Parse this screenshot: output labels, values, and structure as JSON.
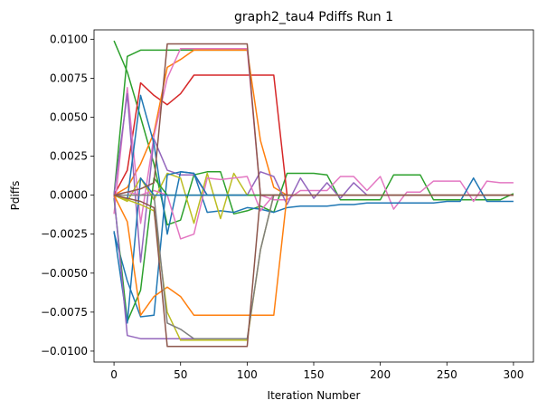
{
  "chart_data": {
    "type": "line",
    "title": "graph2_tau4 Pdiffs Run 1",
    "xlabel": "Iteration Number",
    "ylabel": "Pdiffs",
    "xlim": [
      -15,
      315
    ],
    "ylim": [
      -0.0107,
      0.0106
    ],
    "xticks": [
      0,
      50,
      100,
      150,
      200,
      250,
      300
    ],
    "xtick_labels": [
      "0",
      "50",
      "100",
      "150",
      "200",
      "250",
      "300"
    ],
    "yticks": [
      -0.01,
      -0.0075,
      -0.005,
      -0.0025,
      0,
      0.0025,
      0.005,
      0.0075,
      0.01
    ],
    "ytick_labels": [
      "−0.0100",
      "−0.0075",
      "−0.0050",
      "−0.0025",
      "0.0000",
      "0.0025",
      "0.0050",
      "0.0075",
      "0.0100"
    ],
    "grid": false,
    "legend": "none",
    "series": [
      {
        "color": "#2ca02c",
        "x": [
          0,
          10,
          20,
          30,
          40,
          50,
          60,
          70,
          80,
          90,
          100,
          110,
          120,
          130,
          140,
          150,
          160,
          170,
          180,
          190,
          200,
          210,
          220,
          230,
          240,
          250,
          260,
          270,
          280,
          290,
          300
        ],
        "y": [
          0.0099,
          0.0079,
          0.005,
          0.002,
          -0.0019,
          -0.0016,
          0.0013,
          0.0015,
          0.0015,
          -0.0012,
          -0.001,
          -0.0007,
          -0.0011,
          0.0014,
          0.0014,
          0.0014,
          0.0013,
          -0.0003,
          -0.0003,
          -0.0003,
          -0.0003,
          0.0013,
          0.0013,
          0.0013,
          -0.0003,
          -0.0003,
          -0.0003,
          -0.0003,
          -0.0003,
          -0.0003,
          0.0001
        ]
      },
      {
        "color": "#2ca02c",
        "x": [
          0,
          10,
          20,
          30,
          40,
          50,
          60,
          70,
          80,
          90,
          100
        ],
        "y": [
          0.0,
          0.0089,
          0.0093,
          0.0093,
          0.0093,
          0.0093,
          0.0093,
          0.0093,
          0.0093,
          0.0093,
          0.0093
        ]
      },
      {
        "color": "#d62728",
        "x": [
          0,
          10,
          20,
          30,
          40,
          50,
          60,
          70,
          80,
          90,
          100,
          110,
          120,
          130
        ],
        "y": [
          0.0,
          0.0016,
          0.0072,
          0.0064,
          0.0058,
          0.0065,
          0.0077,
          0.0077,
          0.0077,
          0.0077,
          0.0077,
          0.0077,
          0.0077,
          0.0
        ]
      },
      {
        "color": "#ff7f0e",
        "x": [
          0,
          10,
          20,
          30,
          40,
          50,
          60,
          70,
          80,
          90,
          100,
          110,
          120,
          130
        ],
        "y": [
          0.0,
          0.0005,
          0.002,
          0.004,
          0.0082,
          0.0087,
          0.0093,
          0.0093,
          0.0093,
          0.0093,
          0.0093,
          0.0035,
          0.0005,
          0.0
        ]
      },
      {
        "color": "#e377c2",
        "x": [
          0,
          10,
          20,
          30,
          40,
          50,
          60,
          70,
          80,
          90,
          100,
          110,
          120,
          130,
          140,
          150,
          160,
          170,
          180,
          190,
          200,
          210,
          220,
          230,
          240,
          250,
          260,
          270,
          280,
          290,
          300
        ],
        "y": [
          -0.0012,
          0.0069,
          -0.0018,
          0.0038,
          0.0075,
          0.0094,
          0.0094,
          0.0094,
          0.0094,
          0.0094,
          0.0094,
          0.0,
          -0.0003,
          -0.0003,
          0.0003,
          0.0003,
          0.0003,
          0.0012,
          0.0012,
          0.0003,
          0.0012,
          -0.0009,
          0.0002,
          0.0002,
          0.0009,
          0.0009,
          0.0009,
          -0.0004,
          0.0009,
          0.0008,
          0.0008
        ]
      },
      {
        "color": "#9467bd",
        "x": [
          0,
          10,
          20,
          30,
          40,
          50,
          60,
          70,
          80,
          90,
          100,
          110,
          120,
          130,
          140,
          150,
          160,
          170,
          180,
          190,
          200,
          210,
          220,
          230,
          240,
          250,
          260,
          270,
          280,
          290,
          300
        ],
        "y": [
          0.0,
          0.0065,
          -0.0043,
          0.0036,
          0.0016,
          0.0013,
          0.0013,
          0.0,
          0.0,
          0.0,
          0.0,
          0.0015,
          0.0012,
          -0.0006,
          0.0011,
          -0.0002,
          0.0008,
          -0.0002,
          0.0008,
          0.0,
          0.0,
          0.0,
          0.0,
          0.0,
          0.0,
          0.0,
          0.0,
          0.0,
          0.0,
          0.0,
          0.0
        ]
      },
      {
        "color": "#1f77b4",
        "x": [
          0,
          10,
          20,
          30,
          40,
          50,
          60,
          70,
          80,
          90,
          100,
          110,
          120,
          130,
          140,
          150,
          160,
          170,
          180,
          190,
          200,
          210,
          220,
          230,
          240,
          250,
          260,
          270,
          280,
          290,
          300
        ],
        "y": [
          0.0,
          -0.0003,
          0.0064,
          0.0033,
          -0.0025,
          0.0015,
          0.0014,
          -0.0011,
          -0.001,
          -0.0011,
          -0.0008,
          -0.0009,
          -0.0011,
          -0.0008,
          -0.0007,
          -0.0007,
          -0.0007,
          -0.0006,
          -0.0006,
          -0.0005,
          -0.0005,
          -0.0005,
          -0.0005,
          -0.0005,
          -0.0005,
          -0.0004,
          -0.0004,
          0.0011,
          -0.0004,
          -0.0004,
          -0.0004
        ]
      },
      {
        "color": "#bcbd22",
        "x": [
          0,
          10,
          20,
          30,
          40,
          50,
          60,
          70,
          80,
          90,
          100,
          110,
          120,
          130,
          140,
          150,
          160,
          170,
          180,
          190,
          200,
          210,
          220,
          230,
          240,
          250,
          260,
          270,
          280,
          290,
          300
        ],
        "y": [
          0.0,
          -0.0004,
          0.0011,
          -0.0003,
          0.0014,
          0.0011,
          -0.0018,
          0.0014,
          -0.0015,
          0.0014,
          0.0,
          0.0,
          0.0,
          0.0,
          0.0,
          0.0,
          0.0,
          0.0,
          0.0,
          0.0,
          0.0,
          0.0,
          0.0,
          0.0,
          0.0,
          0.0,
          0.0,
          0.0,
          0.0,
          0.0,
          0.0
        ]
      },
      {
        "color": "#e377c2",
        "x": [
          0,
          10,
          20,
          30,
          40,
          50,
          60,
          70,
          80,
          90,
          100,
          110,
          120,
          130
        ],
        "y": [
          0.0,
          0.0002,
          0.0,
          0.0003,
          0.0,
          -0.0028,
          -0.0025,
          0.0011,
          0.001,
          0.0011,
          0.0012,
          -0.001,
          0.0,
          0.0
        ]
      },
      {
        "color": "#1f77b4",
        "x": [
          0,
          10,
          20,
          30,
          40,
          50,
          60,
          70,
          80,
          90,
          100,
          110,
          120,
          130
        ],
        "y": [
          -0.0024,
          -0.0055,
          -0.0078,
          -0.0077,
          0.0013,
          0.0015,
          0.0014,
          0.0,
          0.0,
          0.0,
          0.0,
          0.0,
          0.0,
          0.0
        ]
      },
      {
        "color": "#2ca02c",
        "x": [
          0,
          10,
          20,
          30,
          40,
          50,
          60,
          70,
          80,
          90,
          100,
          110,
          120,
          130
        ],
        "y": [
          -0.0002,
          -0.0081,
          -0.0061,
          0.0011,
          0.0,
          0.0,
          0.0,
          0.0,
          0.0,
          0.0,
          0.0,
          0.0,
          0.0,
          0.0
        ]
      },
      {
        "color": "#1f77b4",
        "x": [
          0,
          10,
          20,
          30,
          40,
          50,
          60,
          70,
          80,
          90,
          100
        ],
        "y": [
          -0.0023,
          -0.0082,
          0.0011,
          0.0,
          0.0,
          0.0,
          0.0,
          0.0,
          0.0,
          0.0,
          0.0
        ]
      },
      {
        "color": "#9467bd",
        "x": [
          0,
          10,
          20,
          30,
          40,
          50,
          60,
          70,
          80,
          90,
          100
        ],
        "y": [
          0.0,
          -0.009,
          -0.0092,
          -0.0092,
          -0.0092,
          -0.0092,
          -0.0092,
          -0.0092,
          -0.0092,
          -0.0092,
          -0.0092
        ]
      },
      {
        "color": "#ff7f0e",
        "x": [
          0,
          10,
          20,
          30,
          40,
          50,
          60,
          70,
          80,
          90,
          100,
          110,
          120,
          130
        ],
        "y": [
          0.0,
          -0.0017,
          -0.0077,
          -0.0065,
          -0.0059,
          -0.0065,
          -0.0077,
          -0.0077,
          -0.0077,
          -0.0077,
          -0.0077,
          -0.0077,
          -0.0077,
          0.0
        ]
      },
      {
        "color": "#bcbd22",
        "x": [
          0,
          10,
          20,
          30,
          40,
          50,
          60,
          70,
          80,
          90,
          100,
          110,
          120
        ],
        "y": [
          0.0,
          -0.0003,
          -0.0006,
          -0.001,
          -0.0075,
          -0.0093,
          -0.0093,
          -0.0093,
          -0.0093,
          -0.0093,
          -0.0093,
          -0.0035,
          0.0
        ]
      },
      {
        "color": "#7f7f7f",
        "x": [
          0,
          10,
          20,
          30,
          40,
          50,
          60,
          70,
          80,
          90,
          100,
          110,
          120,
          130
        ],
        "y": [
          0.0,
          0.0,
          0.0,
          0.0,
          -0.0082,
          -0.0086,
          -0.0092,
          -0.0092,
          -0.0092,
          -0.0092,
          -0.0092,
          -0.0035,
          0.0,
          0.0
        ]
      },
      {
        "color": "#8c564b",
        "x": [
          0,
          10,
          20,
          30,
          40,
          50,
          60,
          70,
          80,
          90,
          100,
          110,
          120,
          130,
          140,
          150,
          160,
          170,
          180,
          190,
          200,
          210,
          220,
          230,
          240,
          250,
          260,
          270,
          280,
          290,
          300
        ],
        "y": [
          0.0,
          -0.0002,
          -0.0004,
          -0.0008,
          -0.0097,
          -0.0097,
          -0.0097,
          -0.0097,
          -0.0097,
          -0.0097,
          -0.0097,
          0.0,
          0.0,
          0.0,
          0.0,
          0.0,
          0.0,
          0.0,
          0.0,
          0.0,
          0.0,
          0.0,
          0.0,
          0.0,
          0.0,
          0.0,
          0.0,
          0.0,
          0.0,
          0.0,
          0.0
        ]
      },
      {
        "color": "#8c564b",
        "x": [
          0,
          10,
          20,
          30,
          40,
          50,
          60,
          70,
          80,
          90,
          100,
          110,
          120,
          130,
          140,
          150,
          160,
          170,
          180,
          190,
          200,
          210,
          220,
          230,
          240,
          250,
          260,
          270,
          280,
          290,
          300
        ],
        "y": [
          0.0,
          0.0002,
          0.0004,
          0.0008,
          0.0097,
          0.0097,
          0.0097,
          0.0097,
          0.0097,
          0.0097,
          0.0097,
          0.0,
          0.0,
          0.0,
          0.0,
          0.0,
          0.0,
          0.0,
          0.0,
          0.0,
          0.0,
          0.0,
          0.0,
          0.0,
          0.0,
          0.0,
          0.0,
          0.0,
          0.0,
          0.0,
          0.0
        ]
      }
    ]
  }
}
